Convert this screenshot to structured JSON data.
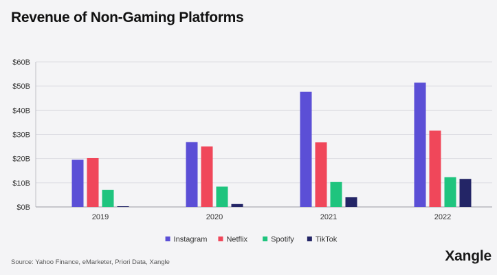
{
  "chart_data": {
    "type": "bar",
    "title": "Revenue of Non-Gaming Platforms",
    "categories": [
      "2019",
      "2020",
      "2021",
      "2022"
    ],
    "series": [
      {
        "name": "Instagram",
        "color": "#5b4fd6",
        "values": [
          19.5,
          26.8,
          47.6,
          51.4
        ]
      },
      {
        "name": "Netflix",
        "color": "#f0475a",
        "values": [
          20.2,
          25.0,
          26.7,
          31.6
        ]
      },
      {
        "name": "Spotify",
        "color": "#1fc47e",
        "values": [
          7.1,
          8.4,
          10.3,
          12.3
        ]
      },
      {
        "name": "TikTok",
        "color": "#232566",
        "values": [
          0.2,
          1.2,
          4.0,
          11.6
        ]
      }
    ],
    "ylim": [
      0,
      60
    ],
    "yticks": [
      "$0B",
      "$10B",
      "$20B",
      "$30B",
      "$40B",
      "$50B",
      "$60B"
    ],
    "grid": true,
    "legend_position": "bottom"
  },
  "source": "Source: Yahoo Finance, eMarketer, Priori Data, Xangle",
  "brand": "Xangle"
}
